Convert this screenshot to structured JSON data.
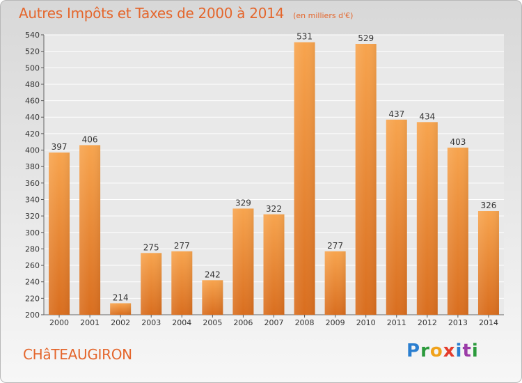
{
  "title": "Autres Impôts et Taxes de 2000 à 2014",
  "subtitle": "(en milliers d'€)",
  "commune": "CHâTEAUGIRON",
  "logo": {
    "letters": [
      "P",
      "r",
      "o",
      "x",
      "i",
      "t",
      "i"
    ],
    "colors": [
      "#2b7fd0",
      "#2b9a3c",
      "#f0a21b",
      "#e43c2c",
      "#2b7fd0",
      "#9b3ca8",
      "#2b9a3c"
    ]
  },
  "colors": {
    "accent": "#e4662c",
    "bar_top": "#f7a44e",
    "bar_bottom": "#d96e1f"
  },
  "chart_data": {
    "type": "bar",
    "categories": [
      "2000",
      "2001",
      "2002",
      "2003",
      "2004",
      "2005",
      "2006",
      "2007",
      "2008",
      "2009",
      "2010",
      "2011",
      "2012",
      "2013",
      "2014"
    ],
    "values": [
      397,
      406,
      214,
      275,
      277,
      242,
      329,
      322,
      531,
      277,
      529,
      437,
      434,
      403,
      326
    ],
    "ylim": [
      200,
      540
    ],
    "yticks": [
      200,
      220,
      240,
      260,
      280,
      300,
      320,
      340,
      360,
      380,
      400,
      420,
      440,
      460,
      480,
      500,
      520,
      540
    ],
    "grid": true,
    "data_labels": true
  }
}
